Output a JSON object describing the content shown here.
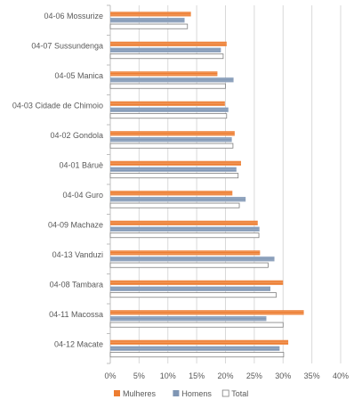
{
  "chart_data": {
    "type": "bar",
    "orientation": "horizontal",
    "categories": [
      "04-06 Mossurize",
      "04-07 Sussundenga",
      "04-05 Manica",
      "04-03 Cidade de Chimoio",
      "04-02 Gondola",
      "04-01 Báruè",
      "04-04 Guro",
      "04-09 Machaze",
      "04-13 Vanduzi",
      "04-08 Tambara",
      "04-11 Macossa",
      "04-12 Macate"
    ],
    "series": [
      {
        "name": "Mulheres",
        "color": "#ED7D31",
        "values": [
          14.0,
          20.2,
          18.6,
          19.9,
          21.6,
          22.7,
          21.2,
          25.6,
          26.0,
          30.0,
          33.6,
          30.9
        ]
      },
      {
        "name": "Homens",
        "color": "#7F96B4",
        "values": [
          12.9,
          19.2,
          21.4,
          20.5,
          21.1,
          21.9,
          23.5,
          25.9,
          28.5,
          27.8,
          27.1,
          29.4
        ]
      },
      {
        "name": "Total",
        "color": "#FFFFFF",
        "values": [
          13.4,
          19.6,
          20.0,
          20.2,
          21.3,
          22.2,
          22.4,
          25.8,
          27.4,
          28.8,
          30.0,
          30.1
        ]
      }
    ],
    "xlim": [
      0,
      40
    ],
    "xticks": [
      "0%",
      "5%",
      "10%",
      "15%",
      "20%",
      "25%",
      "30%",
      "35%",
      "40%"
    ],
    "xtick_values": [
      0,
      5,
      10,
      15,
      20,
      25,
      30,
      35,
      40
    ],
    "grid": true,
    "legend": "bottom"
  }
}
